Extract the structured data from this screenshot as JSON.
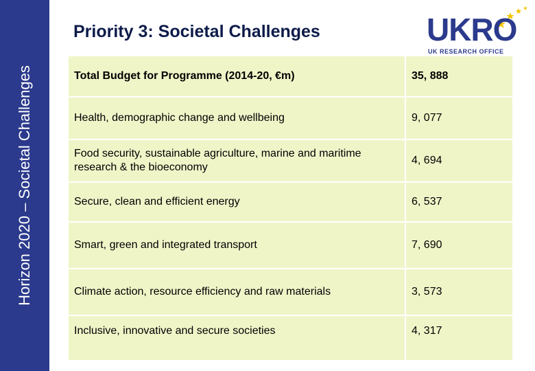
{
  "sidebar": {
    "text": "Horizon 2020 – Societal Challenges"
  },
  "title": "Priority 3: Societal Challenges",
  "logo": {
    "word": "UKRO",
    "subtitle": "UK RESEARCH OFFICE",
    "accent": "#f2c500",
    "brand": "#2b3a8c"
  },
  "table": {
    "header": {
      "label": "Total Budget for Programme (2014-20, €m)",
      "value": "35, 888"
    },
    "rows": [
      {
        "label": "Health, demographic change and wellbeing",
        "value": "9, 077"
      },
      {
        "label": "Food security, sustainable agriculture, marine and maritime research & the bioeconomy",
        "value": "4, 694"
      },
      {
        "label": "Secure, clean and efficient energy",
        "value": "6, 537"
      },
      {
        "label": "Smart, green and integrated transport",
        "value": "7, 690"
      },
      {
        "label": "Climate action, resource efficiency and raw materials",
        "value": "3, 573"
      },
      {
        "label": "Inclusive, innovative and secure societies",
        "value": "4, 317"
      }
    ]
  }
}
